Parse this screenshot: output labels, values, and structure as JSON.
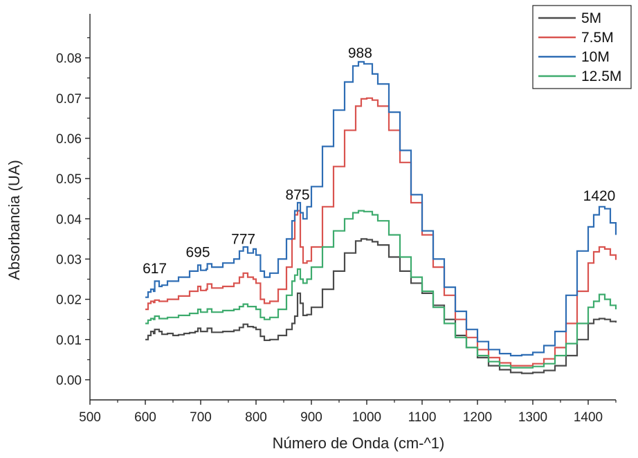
{
  "chart_data": {
    "type": "line",
    "title": "",
    "xlabel": "Número de Onda (cm-^1)",
    "ylabel": "Absorbancia (UA)",
    "xlim": [
      500,
      1450
    ],
    "ylim": [
      -0.005,
      0.0875
    ],
    "x_ticks": [
      500,
      600,
      700,
      800,
      900,
      1000,
      1100,
      1200,
      1300,
      1400
    ],
    "x_tick_labels": [
      "500",
      "600",
      "700",
      "800",
      "900",
      "1000",
      "1100",
      "1200",
      "1300",
      "1400"
    ],
    "y_ticks": [
      0.0,
      0.01,
      0.02,
      0.03,
      0.04,
      0.05,
      0.06,
      0.07,
      0.08
    ],
    "y_tick_labels": [
      "0.00",
      "0.01",
      "0.02",
      "0.03",
      "0.04",
      "0.05",
      "0.06",
      "0.07",
      "0.08"
    ],
    "legend_position": "top-right",
    "grid": false,
    "peak_annotations": [
      {
        "text": "617",
        "x": 617,
        "y": 0.0265
      },
      {
        "text": "695",
        "x": 695,
        "y": 0.0305
      },
      {
        "text": "777",
        "x": 777,
        "y": 0.0338
      },
      {
        "text": "875",
        "x": 875,
        "y": 0.0448
      },
      {
        "text": "988",
        "x": 988,
        "y": 0.08
      },
      {
        "text": "1420",
        "x": 1420,
        "y": 0.0445
      }
    ],
    "series": [
      {
        "name": "5M",
        "color": "#4a4a4a",
        "points": [
          [
            600,
            0.01
          ],
          [
            605,
            0.011
          ],
          [
            610,
            0.012
          ],
          [
            615,
            0.0115
          ],
          [
            617,
            0.0125
          ],
          [
            625,
            0.012
          ],
          [
            630,
            0.0113
          ],
          [
            640,
            0.0115
          ],
          [
            650,
            0.011
          ],
          [
            660,
            0.0112
          ],
          [
            670,
            0.0115
          ],
          [
            680,
            0.0117
          ],
          [
            690,
            0.012
          ],
          [
            695,
            0.0128
          ],
          [
            700,
            0.012
          ],
          [
            710,
            0.012
          ],
          [
            712,
            0.0128
          ],
          [
            720,
            0.0118
          ],
          [
            740,
            0.012
          ],
          [
            760,
            0.0123
          ],
          [
            770,
            0.013
          ],
          [
            777,
            0.0138
          ],
          [
            785,
            0.0132
          ],
          [
            795,
            0.013
          ],
          [
            800,
            0.0125
          ],
          [
            808,
            0.0108
          ],
          [
            815,
            0.0098
          ],
          [
            825,
            0.01
          ],
          [
            840,
            0.011
          ],
          [
            855,
            0.0125
          ],
          [
            865,
            0.014
          ],
          [
            870,
            0.0158
          ],
          [
            875,
            0.0215
          ],
          [
            880,
            0.019
          ],
          [
            885,
            0.016
          ],
          [
            892,
            0.0162
          ],
          [
            900,
            0.018
          ],
          [
            920,
            0.0225
          ],
          [
            940,
            0.027
          ],
          [
            960,
            0.0315
          ],
          [
            980,
            0.0345
          ],
          [
            990,
            0.035
          ],
          [
            1000,
            0.0348
          ],
          [
            1010,
            0.0343
          ],
          [
            1020,
            0.0335
          ],
          [
            1040,
            0.0305
          ],
          [
            1060,
            0.027
          ],
          [
            1080,
            0.024
          ],
          [
            1100,
            0.0215
          ],
          [
            1120,
            0.0185
          ],
          [
            1140,
            0.015
          ],
          [
            1160,
            0.011
          ],
          [
            1180,
            0.008
          ],
          [
            1200,
            0.0055
          ],
          [
            1220,
            0.0035
          ],
          [
            1240,
            0.0025
          ],
          [
            1260,
            0.0018
          ],
          [
            1280,
            0.0016
          ],
          [
            1300,
            0.0018
          ],
          [
            1320,
            0.0023
          ],
          [
            1340,
            0.0035
          ],
          [
            1360,
            0.006
          ],
          [
            1380,
            0.01
          ],
          [
            1400,
            0.014
          ],
          [
            1410,
            0.015
          ],
          [
            1420,
            0.0152
          ],
          [
            1430,
            0.015
          ],
          [
            1440,
            0.0145
          ],
          [
            1450,
            0.0142
          ]
        ]
      },
      {
        "name": "7.5M",
        "color": "#d9534f",
        "points": [
          [
            600,
            0.0175
          ],
          [
            605,
            0.019
          ],
          [
            610,
            0.0195
          ],
          [
            615,
            0.0192
          ],
          [
            617,
            0.0198
          ],
          [
            625,
            0.0195
          ],
          [
            640,
            0.02
          ],
          [
            660,
            0.0208
          ],
          [
            680,
            0.022
          ],
          [
            695,
            0.0232
          ],
          [
            700,
            0.0222
          ],
          [
            710,
            0.0225
          ],
          [
            712,
            0.0238
          ],
          [
            720,
            0.0228
          ],
          [
            740,
            0.0232
          ],
          [
            760,
            0.024
          ],
          [
            770,
            0.0255
          ],
          [
            777,
            0.0265
          ],
          [
            785,
            0.0255
          ],
          [
            795,
            0.025
          ],
          [
            800,
            0.024
          ],
          [
            808,
            0.02
          ],
          [
            815,
            0.019
          ],
          [
            825,
            0.0195
          ],
          [
            840,
            0.0225
          ],
          [
            855,
            0.028
          ],
          [
            865,
            0.035
          ],
          [
            870,
            0.041
          ],
          [
            875,
            0.042
          ],
          [
            880,
            0.033
          ],
          [
            885,
            0.029
          ],
          [
            892,
            0.0295
          ],
          [
            900,
            0.033
          ],
          [
            920,
            0.043
          ],
          [
            940,
            0.053
          ],
          [
            960,
            0.062
          ],
          [
            980,
            0.068
          ],
          [
            990,
            0.0698
          ],
          [
            1000,
            0.07
          ],
          [
            1010,
            0.0695
          ],
          [
            1020,
            0.068
          ],
          [
            1040,
            0.062
          ],
          [
            1060,
            0.054
          ],
          [
            1080,
            0.044
          ],
          [
            1100,
            0.036
          ],
          [
            1120,
            0.028
          ],
          [
            1140,
            0.021
          ],
          [
            1160,
            0.015
          ],
          [
            1180,
            0.0105
          ],
          [
            1200,
            0.0075
          ],
          [
            1220,
            0.0055
          ],
          [
            1240,
            0.0042
          ],
          [
            1260,
            0.0035
          ],
          [
            1280,
            0.0035
          ],
          [
            1300,
            0.004
          ],
          [
            1320,
            0.0052
          ],
          [
            1340,
            0.008
          ],
          [
            1360,
            0.014
          ],
          [
            1380,
            0.022
          ],
          [
            1400,
            0.029
          ],
          [
            1410,
            0.0318
          ],
          [
            1420,
            0.033
          ],
          [
            1430,
            0.0325
          ],
          [
            1440,
            0.031
          ],
          [
            1450,
            0.0298
          ]
        ]
      },
      {
        "name": "10M",
        "color": "#2e6db4",
        "points": [
          [
            600,
            0.0205
          ],
          [
            605,
            0.0218
          ],
          [
            610,
            0.0225
          ],
          [
            615,
            0.022
          ],
          [
            617,
            0.0245
          ],
          [
            625,
            0.0232
          ],
          [
            630,
            0.0235
          ],
          [
            640,
            0.0245
          ],
          [
            660,
            0.0255
          ],
          [
            680,
            0.027
          ],
          [
            695,
            0.0285
          ],
          [
            700,
            0.0272
          ],
          [
            710,
            0.0275
          ],
          [
            712,
            0.0288
          ],
          [
            720,
            0.028
          ],
          [
            740,
            0.029
          ],
          [
            760,
            0.03
          ],
          [
            770,
            0.032
          ],
          [
            777,
            0.033
          ],
          [
            785,
            0.0315
          ],
          [
            795,
            0.0325
          ],
          [
            800,
            0.031
          ],
          [
            808,
            0.027
          ],
          [
            815,
            0.0255
          ],
          [
            825,
            0.0265
          ],
          [
            840,
            0.03
          ],
          [
            855,
            0.035
          ],
          [
            865,
            0.0395
          ],
          [
            870,
            0.042
          ],
          [
            875,
            0.044
          ],
          [
            880,
            0.0415
          ],
          [
            885,
            0.04
          ],
          [
            892,
            0.043
          ],
          [
            900,
            0.048
          ],
          [
            920,
            0.058
          ],
          [
            940,
            0.067
          ],
          [
            960,
            0.074
          ],
          [
            975,
            0.078
          ],
          [
            985,
            0.079
          ],
          [
            995,
            0.0785
          ],
          [
            1010,
            0.076
          ],
          [
            1020,
            0.0735
          ],
          [
            1040,
            0.0665
          ],
          [
            1060,
            0.057
          ],
          [
            1080,
            0.046
          ],
          [
            1100,
            0.037
          ],
          [
            1120,
            0.03
          ],
          [
            1140,
            0.023
          ],
          [
            1160,
            0.017
          ],
          [
            1180,
            0.0125
          ],
          [
            1200,
            0.0095
          ],
          [
            1220,
            0.0075
          ],
          [
            1240,
            0.0065
          ],
          [
            1260,
            0.006
          ],
          [
            1280,
            0.0062
          ],
          [
            1300,
            0.0068
          ],
          [
            1320,
            0.0085
          ],
          [
            1340,
            0.012
          ],
          [
            1360,
            0.021
          ],
          [
            1380,
            0.032
          ],
          [
            1400,
            0.038
          ],
          [
            1410,
            0.041
          ],
          [
            1420,
            0.043
          ],
          [
            1430,
            0.0425
          ],
          [
            1440,
            0.039
          ],
          [
            1450,
            0.036
          ]
        ]
      },
      {
        "name": "12.5M",
        "color": "#3dab6d",
        "points": [
          [
            600,
            0.014
          ],
          [
            605,
            0.0148
          ],
          [
            610,
            0.0152
          ],
          [
            615,
            0.015
          ],
          [
            617,
            0.0158
          ],
          [
            625,
            0.0152
          ],
          [
            640,
            0.0155
          ],
          [
            660,
            0.016
          ],
          [
            680,
            0.0165
          ],
          [
            695,
            0.0175
          ],
          [
            700,
            0.0168
          ],
          [
            710,
            0.0168
          ],
          [
            712,
            0.0176
          ],
          [
            720,
            0.0168
          ],
          [
            740,
            0.0172
          ],
          [
            760,
            0.0175
          ],
          [
            770,
            0.0182
          ],
          [
            777,
            0.0188
          ],
          [
            785,
            0.0182
          ],
          [
            795,
            0.0182
          ],
          [
            800,
            0.0175
          ],
          [
            808,
            0.0155
          ],
          [
            815,
            0.015
          ],
          [
            825,
            0.0155
          ],
          [
            840,
            0.0175
          ],
          [
            855,
            0.021
          ],
          [
            865,
            0.0245
          ],
          [
            870,
            0.026
          ],
          [
            875,
            0.0275
          ],
          [
            880,
            0.025
          ],
          [
            885,
            0.024
          ],
          [
            892,
            0.025
          ],
          [
            900,
            0.028
          ],
          [
            920,
            0.033
          ],
          [
            940,
            0.037
          ],
          [
            960,
            0.04
          ],
          [
            975,
            0.0415
          ],
          [
            985,
            0.042
          ],
          [
            995,
            0.0418
          ],
          [
            1010,
            0.041
          ],
          [
            1020,
            0.0395
          ],
          [
            1040,
            0.036
          ],
          [
            1060,
            0.0305
          ],
          [
            1080,
            0.0255
          ],
          [
            1100,
            0.022
          ],
          [
            1120,
            0.018
          ],
          [
            1140,
            0.014
          ],
          [
            1160,
            0.0105
          ],
          [
            1180,
            0.008
          ],
          [
            1200,
            0.006
          ],
          [
            1220,
            0.0045
          ],
          [
            1240,
            0.0035
          ],
          [
            1260,
            0.003
          ],
          [
            1280,
            0.003
          ],
          [
            1300,
            0.0033
          ],
          [
            1320,
            0.004
          ],
          [
            1340,
            0.006
          ],
          [
            1360,
            0.009
          ],
          [
            1380,
            0.014
          ],
          [
            1400,
            0.018
          ],
          [
            1410,
            0.0195
          ],
          [
            1420,
            0.0212
          ],
          [
            1430,
            0.02
          ],
          [
            1440,
            0.0185
          ],
          [
            1450,
            0.0175
          ]
        ]
      }
    ]
  }
}
